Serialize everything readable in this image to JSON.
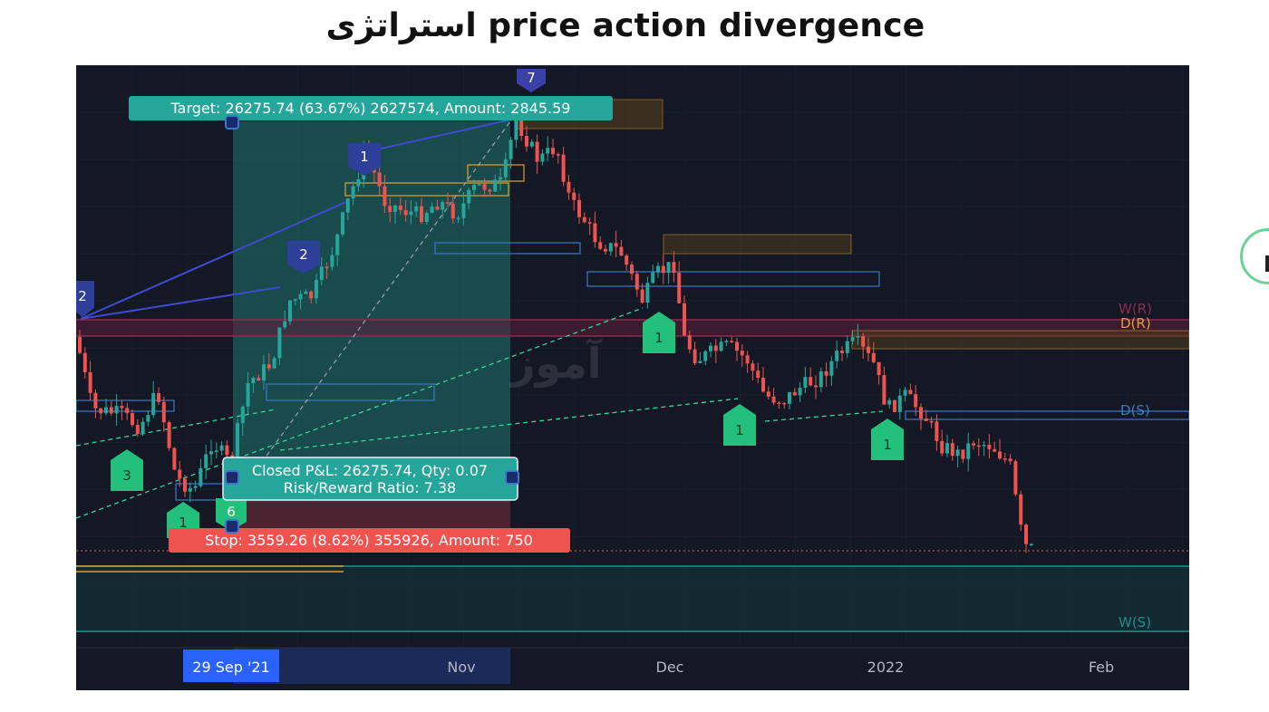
{
  "page": {
    "title": "استراتژی price action divergence"
  },
  "chart_data": {
    "type": "candlestick",
    "xaxis": {
      "labels": [
        {
          "text": "29 Sep '21",
          "highlight": true
        },
        {
          "text": "Nov"
        },
        {
          "text": "Dec"
        },
        {
          "text": "2022"
        },
        {
          "text": "Feb"
        }
      ]
    },
    "position": {
      "target_label": "Target: 26275.74 (63.67%) 2627574, Amount: 2845.59",
      "stop_label": "Stop: 3559.26 (8.62%) 355926, Amount: 750",
      "pnl_label": "Closed P&L: 26275.74, Qty: 0.07",
      "rr_label": "Risk/Reward Ratio: 7.38",
      "profit_color": "#26a69a",
      "loss_color": "#ef5350"
    },
    "levels": [
      {
        "label": "W(R)",
        "color": "#8e2a4f"
      },
      {
        "label": "D(R)",
        "color": "#e0a030"
      },
      {
        "label": "D(S)",
        "color": "#3a78c8"
      },
      {
        "label": "W(S)",
        "color": "#1f8f8a"
      }
    ],
    "markers": [
      {
        "text": "7",
        "color": "#3b3fa8"
      },
      {
        "text": "1",
        "color": "#2e3f9a"
      },
      {
        "text": "2",
        "color": "#2e3f9a"
      },
      {
        "text": "2",
        "color": "#2e3f9a"
      },
      {
        "text": "1",
        "color": "#22c07a"
      },
      {
        "text": "3",
        "color": "#22c07a"
      },
      {
        "text": "1",
        "color": "#22c07a"
      },
      {
        "text": "6",
        "color": "#22c07a"
      },
      {
        "text": "1",
        "color": "#22c07a"
      },
      {
        "text": "1",
        "color": "#22c07a"
      }
    ],
    "watermark": "آموز",
    "colors": {
      "up": "#26a69a",
      "down": "#ef5350",
      "background": "#141824"
    }
  }
}
